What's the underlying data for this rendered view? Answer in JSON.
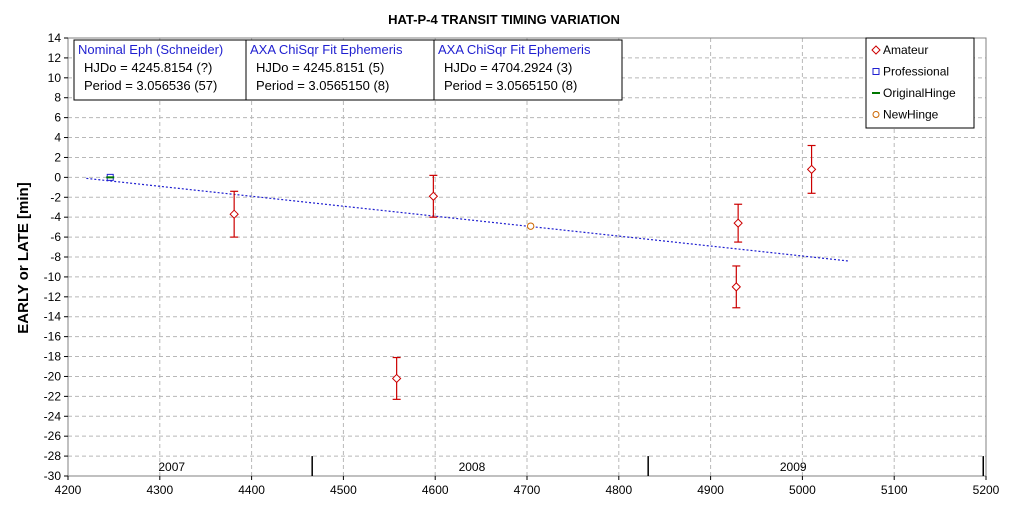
{
  "chart_data": {
    "type": "scatter",
    "title": "HAT-P-4 TRANSIT TIMING VARIATION",
    "ylabel": "EARLY or LATE [min]",
    "xlabel": "",
    "xlim": [
      4200,
      5200
    ],
    "ylim": [
      -30,
      14
    ],
    "x_ticks": [
      4200,
      4300,
      4400,
      4500,
      4600,
      4700,
      4800,
      4900,
      5000,
      5100,
      5200
    ],
    "y_ticks": [
      14,
      12,
      10,
      8,
      6,
      4,
      2,
      0,
      -2,
      -4,
      -6,
      -8,
      -10,
      -12,
      -14,
      -16,
      -18,
      -20,
      -22,
      -24,
      -26,
      -28,
      -30
    ],
    "grid": true,
    "legend_position": "top-right",
    "colors": {
      "amateur": "#cc0000",
      "professional": "#1f1fd0",
      "original_hinge": "#007700",
      "new_hinge": "#cc6600",
      "fit_line": "#1f1fd0"
    },
    "series": [
      {
        "name": "Amateur",
        "marker": "diamond",
        "points": [
          {
            "x": 4381,
            "y": -3.7,
            "err": 2.3
          },
          {
            "x": 4558,
            "y": -20.2,
            "err": 2.1
          },
          {
            "x": 4598,
            "y": -1.9,
            "err": 2.1
          },
          {
            "x": 4928,
            "y": -11.0,
            "err": 2.1
          },
          {
            "x": 4930,
            "y": -4.6,
            "err": 1.9
          },
          {
            "x": 5010,
            "y": 0.8,
            "err": 2.4
          }
        ]
      },
      {
        "name": "Professional",
        "marker": "square",
        "points": [
          {
            "x": 4246,
            "y": 0.0
          }
        ]
      },
      {
        "name": "OriginalHinge",
        "marker": "dash",
        "points": [
          {
            "x": 4246,
            "y": 0.0
          }
        ]
      },
      {
        "name": "NewHinge",
        "marker": "circle",
        "points": [
          {
            "x": 4704,
            "y": -4.9
          }
        ]
      }
    ],
    "fit_line": {
      "x": [
        4220,
        5050
      ],
      "y": [
        -0.1,
        -8.4
      ]
    },
    "year_axis": {
      "labels": [
        {
          "text": "2007",
          "x": 4313
        },
        {
          "text": "2008",
          "x": 4640
        },
        {
          "text": "2009",
          "x": 4990
        }
      ],
      "dividers": [
        4466,
        4832,
        5197
      ]
    },
    "info_boxes": [
      {
        "title": "Nominal Eph (Schneider)",
        "line1": "HJDo = 4245.8154 (?)",
        "line2": "Period = 3.056536 (57)"
      },
      {
        "title": "AXA ChiSqr Fit Ephemeris",
        "line1": "HJDo = 4245.8151 (5)",
        "line2": "Period = 3.0565150 (8)"
      },
      {
        "title": "AXA ChiSqr Fit Ephemeris",
        "line1": "HJDo = 4704.2924 (3)",
        "line2": "Period = 3.0565150 (8)"
      }
    ]
  }
}
